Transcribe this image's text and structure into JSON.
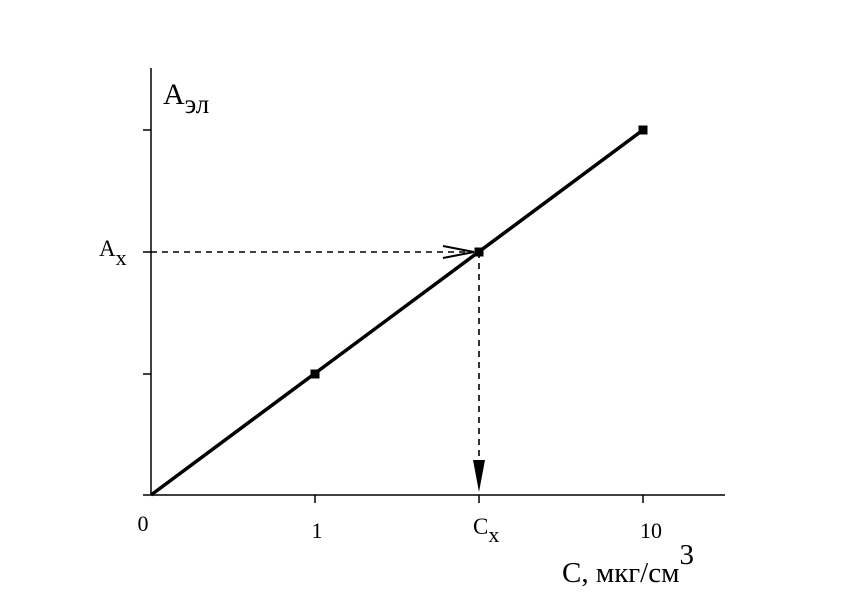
{
  "y_axis": {
    "label": {
      "main": "A",
      "sub": "эл"
    },
    "marker": {
      "main": "A",
      "sub": "x"
    }
  },
  "x_axis": {
    "label": {
      "main": "C, мкг/см",
      "sup": "3"
    },
    "ticks": [
      "0",
      "1",
      "10"
    ],
    "marker": {
      "main": "C",
      "sub": "x"
    }
  }
}
